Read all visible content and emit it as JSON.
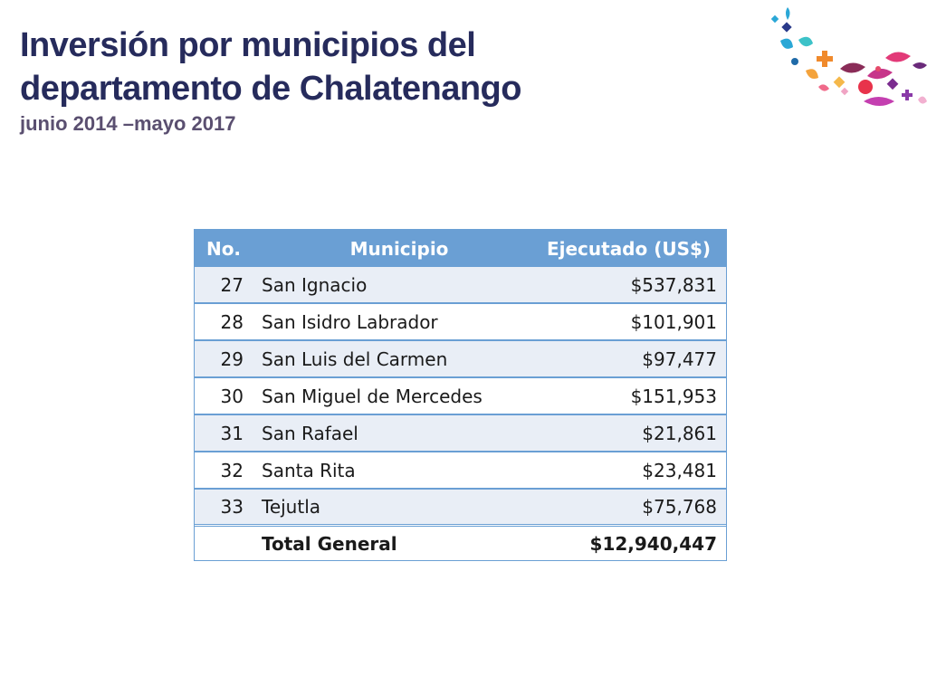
{
  "title": {
    "line1": "Inversión por municipios del",
    "line2": "departamento de Chalatenango",
    "subtitle": "junio 2014 –mayo 2017"
  },
  "table": {
    "headers": {
      "no": "No.",
      "municipio": "Municipio",
      "ejecutado": "Ejecutado (US$)"
    },
    "rows": [
      {
        "no": "27",
        "municipio": "San Ignacio",
        "ejecutado": "$537,831"
      },
      {
        "no": "28",
        "municipio": "San Isidro Labrador",
        "ejecutado": "$101,901"
      },
      {
        "no": "29",
        "municipio": "San Luis del Carmen",
        "ejecutado": "$97,477"
      },
      {
        "no": "30",
        "municipio": "San Miguel de Mercedes",
        "ejecutado": "$151,953"
      },
      {
        "no": "31",
        "municipio": "San Rafael",
        "ejecutado": "$21,861"
      },
      {
        "no": "32",
        "municipio": "Santa Rita",
        "ejecutado": "$23,481"
      },
      {
        "no": "33",
        "municipio": "Tejutla",
        "ejecutado": "$75,768"
      }
    ],
    "total": {
      "no": "",
      "label": "Total General",
      "value": "$12,940,447"
    }
  },
  "colors": {
    "title": "#262b5c",
    "subtitle": "#5a4f70",
    "header_bg": "#6a9fd4",
    "row_alt_bg": "#e9eef6",
    "border": "#6a9fd4"
  },
  "logo": {
    "icon": "confetti-decoration"
  }
}
